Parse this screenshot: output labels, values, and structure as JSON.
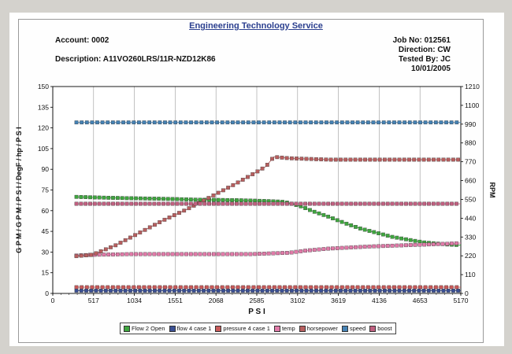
{
  "header": {
    "title": "Engineering Technology Service",
    "account": "Account: 0002",
    "description": "Description: A11VO260LRS/11R-NZD12K86",
    "job_no": "Job No: 012561",
    "direction": "Direction: CW",
    "tested_by": "Tested By: JC",
    "date": "10/01/2005"
  },
  "chart_data": {
    "type": "line",
    "xlabel": "P S I",
    "ylabel": "G P M / G P M / P S I / DegF / hp / P S I",
    "y2label": "RPM",
    "xlim": [
      0,
      5170
    ],
    "ylim": [
      0,
      150
    ],
    "y2lim": [
      0,
      1210
    ],
    "x_ticks": [
      "0",
      "517",
      "1034",
      "1551",
      "2068",
      "2585",
      "3102",
      "3619",
      "4136",
      "4653",
      "5170"
    ],
    "y_ticks": [
      "0",
      "15",
      "30",
      "45",
      "60",
      "75",
      "90",
      "105",
      "120",
      "135",
      "150"
    ],
    "y2_ticks": [
      "0",
      "110",
      "220",
      "330",
      "440",
      "550",
      "660",
      "770",
      "880",
      "990",
      "1100",
      "1210"
    ],
    "grid": "x-major",
    "legend_position": "bottom",
    "series": [
      {
        "name": "Flow 2 Open",
        "color": "#3fa63f",
        "axis": "left",
        "x": [
          300,
          600,
          1000,
          1500,
          1800,
          2100,
          2400,
          2700,
          2900,
          3000,
          3150,
          3300,
          3500,
          3700,
          3900,
          4100,
          4300,
          4500,
          4700,
          5000,
          5170
        ],
        "y": [
          70,
          69.5,
          69,
          68.5,
          68,
          67.8,
          67.5,
          67,
          66.5,
          65.5,
          63,
          59.5,
          55.5,
          51,
          47,
          44,
          41,
          39,
          37,
          35.5,
          35
        ]
      },
      {
        "name": "flow 4 case 1",
        "color": "#3a4f93",
        "axis": "left",
        "x": [
          300,
          5170
        ],
        "y": [
          2,
          2
        ]
      },
      {
        "name": "pressure 4 case 1",
        "color": "#c85a5a",
        "axis": "left",
        "x": [
          300,
          5170
        ],
        "y": [
          4.5,
          4.5
        ]
      },
      {
        "name": "temp",
        "color": "#e07aa8",
        "axis": "left",
        "x": [
          300,
          500,
          1000,
          1500,
          2000,
          2500,
          3000,
          3200,
          3500,
          4000,
          4500,
          5000,
          5170
        ],
        "y": [
          27.5,
          28,
          28.5,
          28.5,
          28.5,
          28.5,
          29.5,
          31,
          32.5,
          34,
          35,
          36,
          36.5
        ]
      },
      {
        "name": "horsepower",
        "color": "#b85f5f",
        "axis": "left",
        "x": [
          300,
          500,
          800,
          1100,
          1400,
          1700,
          2000,
          2300,
          2550,
          2700,
          2800,
          3000,
          3500,
          4000,
          4500,
          5170
        ],
        "y": [
          27,
          28,
          35,
          44,
          53,
          61,
          70,
          79,
          87,
          92,
          99,
          98,
          97,
          97,
          97,
          97
        ]
      },
      {
        "name": "speed",
        "color": "#4682b4",
        "axis": "right",
        "x": [
          300,
          5170
        ],
        "y": [
          1000,
          1000
        ]
      },
      {
        "name": "boost",
        "color": "#c06080",
        "axis": "left",
        "x": [
          300,
          5170
        ],
        "y": [
          65,
          65
        ]
      }
    ]
  }
}
